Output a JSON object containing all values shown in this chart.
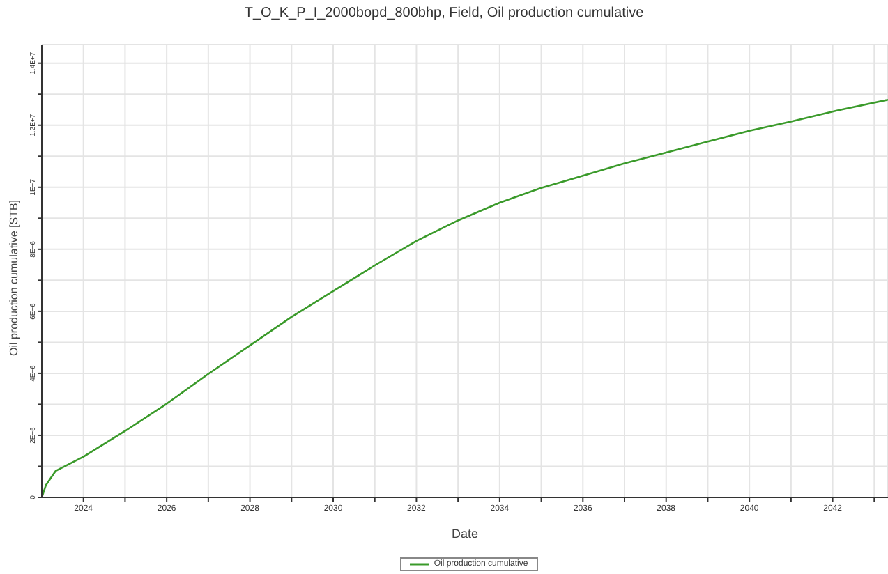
{
  "chart_data": {
    "type": "line",
    "title": "T_O_K_P_I_2000bopd_800bhp, Field, Oil production cumulative",
    "xlabel": "Date",
    "ylabel": "Oil production cumulative [STB]",
    "x": [
      2023,
      2023.1,
      2023.33,
      2024,
      2025,
      2026,
      2027,
      2028,
      2029,
      2030,
      2031,
      2032,
      2033,
      2034,
      2035,
      2036,
      2037,
      2038,
      2039,
      2040,
      2041,
      2042.1,
      2043.33
    ],
    "series": [
      {
        "name": "Oil production cumulative",
        "color": "#3a9a2a",
        "values": [
          0,
          400000,
          850000,
          1310000,
          2140000,
          3020000,
          3980000,
          4900000,
          5820000,
          6650000,
          7480000,
          8270000,
          8930000,
          9500000,
          9980000,
          10370000,
          10770000,
          11120000,
          11470000,
          11820000,
          12120000,
          12470000,
          12820000
        ]
      }
    ],
    "xlim": [
      2023,
      2043.33
    ],
    "xticks": [
      {
        "value": 2024,
        "label": "2024"
      },
      {
        "value": 2025,
        "label": null
      },
      {
        "value": 2026,
        "label": "2026"
      },
      {
        "value": 2027,
        "label": null
      },
      {
        "value": 2028,
        "label": "2028"
      },
      {
        "value": 2029,
        "label": null
      },
      {
        "value": 2030,
        "label": "2030"
      },
      {
        "value": 2031,
        "label": null
      },
      {
        "value": 2032,
        "label": "2032"
      },
      {
        "value": 2033,
        "label": null
      },
      {
        "value": 2034,
        "label": "2034"
      },
      {
        "value": 2035,
        "label": null
      },
      {
        "value": 2036,
        "label": "2036"
      },
      {
        "value": 2037,
        "label": null
      },
      {
        "value": 2038,
        "label": "2038"
      },
      {
        "value": 2039,
        "label": null
      },
      {
        "value": 2040,
        "label": "2040"
      },
      {
        "value": 2041,
        "label": null
      },
      {
        "value": 2042,
        "label": "2042"
      },
      {
        "value": 2043,
        "label": null
      }
    ],
    "ylim": [
      0,
      14600000
    ],
    "yticks": [
      {
        "value": 0,
        "label": "0"
      },
      {
        "value": 1000000,
        "label": null
      },
      {
        "value": 2000000,
        "label": "2E+6"
      },
      {
        "value": 3000000,
        "label": null
      },
      {
        "value": 4000000,
        "label": "4E+6"
      },
      {
        "value": 5000000,
        "label": null
      },
      {
        "value": 6000000,
        "label": "6E+6"
      },
      {
        "value": 7000000,
        "label": null
      },
      {
        "value": 8000000,
        "label": "8E+6"
      },
      {
        "value": 9000000,
        "label": null
      },
      {
        "value": 10000000,
        "label": "1E+7"
      },
      {
        "value": 11000000,
        "label": null
      },
      {
        "value": 12000000,
        "label": "1.2E+7"
      },
      {
        "value": 13000000,
        "label": null
      },
      {
        "value": 14000000,
        "label": "1.4E+7"
      }
    ],
    "grid": true,
    "legend": "bottom",
    "marker": "none",
    "line_style": "solid"
  }
}
